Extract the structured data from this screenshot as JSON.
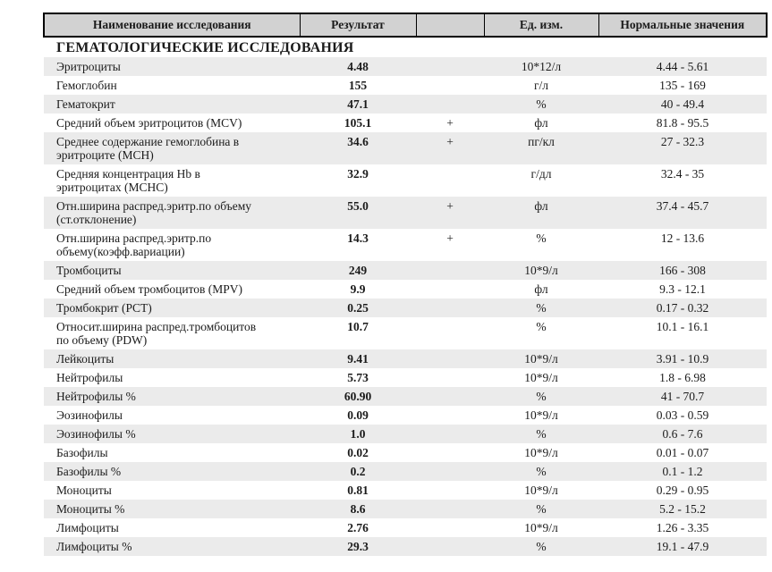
{
  "colors": {
    "header_bg": "#d2d2d2",
    "stripe_bg": "#ebebeb",
    "border": "#000000",
    "text": "#1b1b1b"
  },
  "table": {
    "columns": {
      "name": "Наименование исследования",
      "result": "Результат",
      "flag": "",
      "units": "Ед. изм.",
      "normal": "Нормальные значения"
    },
    "section_title": "ГЕМАТОЛОГИЧЕСКИЕ ИССЛЕДОВАНИЯ",
    "rows": [
      {
        "name": "Эритроциты",
        "result": "4.48",
        "flag": "",
        "units": "10*12/л",
        "normal": "4.44 - 5.61"
      },
      {
        "name": "Гемоглобин",
        "result": "155",
        "flag": "",
        "units": "г/л",
        "normal": "135 - 169"
      },
      {
        "name": "Гематокрит",
        "result": "47.1",
        "flag": "",
        "units": "%",
        "normal": "40 - 49.4"
      },
      {
        "name": "Средний объем эритроцитов (MCV)",
        "result": "105.1",
        "flag": "+",
        "units": "фл",
        "normal": "81.8 - 95.5"
      },
      {
        "name": "Среднее содержание гемоглобина в\nэритроците (MCH)",
        "result": "34.6",
        "flag": "+",
        "units": "пг/кл",
        "normal": "27 - 32.3"
      },
      {
        "name": "Средняя концентрация Hb в\nэритроцитах (MCHC)",
        "result": "32.9",
        "flag": "",
        "units": "г/дл",
        "normal": "32.4 - 35"
      },
      {
        "name": "Отн.ширина распред.эритр.по объему\n(ст.отклонение)",
        "result": "55.0",
        "flag": "+",
        "units": "фл",
        "normal": "37.4 - 45.7"
      },
      {
        "name": "Отн.ширина распред.эритр.по\nобъему(коэфф.вариации)",
        "result": "14.3",
        "flag": "+",
        "units": "%",
        "normal": "12 - 13.6"
      },
      {
        "name": "Тромбоциты",
        "result": "249",
        "flag": "",
        "units": "10*9/л",
        "normal": "166 - 308"
      },
      {
        "name": "Средний объем тромбоцитов (MPV)",
        "result": "9.9",
        "flag": "",
        "units": "фл",
        "normal": "9.3 - 12.1"
      },
      {
        "name": "Тромбокрит (PCT)",
        "result": "0.25",
        "flag": "",
        "units": "%",
        "normal": "0.17 - 0.32"
      },
      {
        "name": "Относит.ширина распред.тромбоцитов\nпо объему (PDW)",
        "result": "10.7",
        "flag": "",
        "units": "%",
        "normal": "10.1 - 16.1"
      },
      {
        "name": "Лейкоциты",
        "result": "9.41",
        "flag": "",
        "units": "10*9/л",
        "normal": "3.91 - 10.9"
      },
      {
        "name": "Нейтрофилы",
        "result": "5.73",
        "flag": "",
        "units": "10*9/л",
        "normal": "1.8 - 6.98"
      },
      {
        "name": "Нейтрофилы %",
        "result": "60.90",
        "flag": "",
        "units": "%",
        "normal": "41 - 70.7"
      },
      {
        "name": "Эозинофилы",
        "result": "0.09",
        "flag": "",
        "units": "10*9/л",
        "normal": "0.03 - 0.59"
      },
      {
        "name": "Эозинофилы %",
        "result": "1.0",
        "flag": "",
        "units": "%",
        "normal": "0.6 - 7.6"
      },
      {
        "name": "Базофилы",
        "result": "0.02",
        "flag": "",
        "units": "10*9/л",
        "normal": "0.01 - 0.07"
      },
      {
        "name": "Базофилы %",
        "result": "0.2",
        "flag": "",
        "units": "%",
        "normal": "0.1 - 1.2"
      },
      {
        "name": "Моноциты",
        "result": "0.81",
        "flag": "",
        "units": "10*9/л",
        "normal": "0.29 - 0.95"
      },
      {
        "name": "Моноциты %",
        "result": "8.6",
        "flag": "",
        "units": "%",
        "normal": "5.2 - 15.2"
      },
      {
        "name": "Лимфоциты",
        "result": "2.76",
        "flag": "",
        "units": "10*9/л",
        "normal": "1.26 - 3.35"
      },
      {
        "name": "Лимфоциты %",
        "result": "29.3",
        "flag": "",
        "units": "%",
        "normal": "19.1 - 47.9"
      }
    ]
  }
}
